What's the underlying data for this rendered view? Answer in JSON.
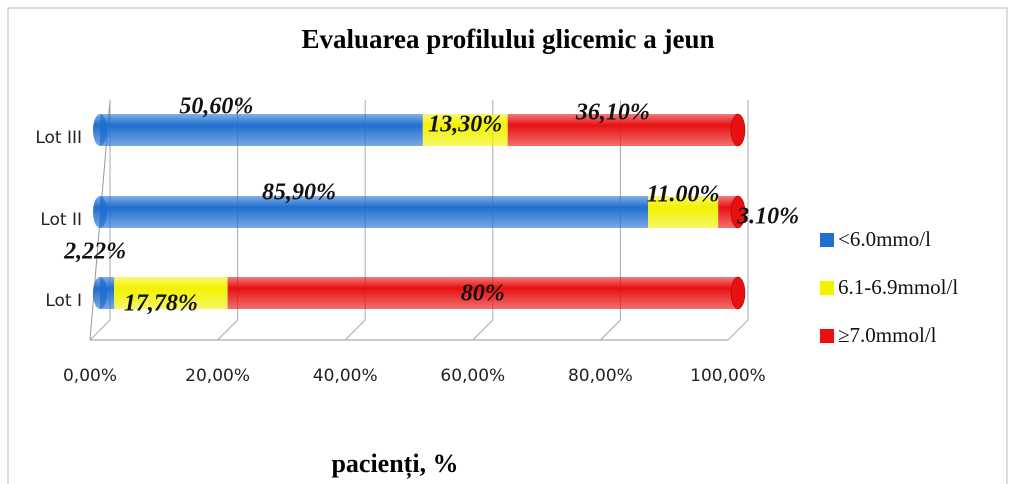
{
  "chart_data": {
    "type": "bar",
    "orientation": "horizontal",
    "stacked": true,
    "title": "Evaluarea profilului glicemic a jeun",
    "xlabel": "pacienți, %",
    "categories": [
      "Lot I",
      "Lot II",
      "Lot III"
    ],
    "series": [
      {
        "name": "<6.0mmo/l",
        "color": "#1f6fd0",
        "values": [
          2.22,
          85.9,
          50.6
        ],
        "value_labels": [
          "2,22%",
          "85,90%",
          "50,60%"
        ]
      },
      {
        "name": "6.1-6.9mmol/l",
        "color": "#f2f200",
        "values": [
          17.78,
          11.0,
          13.3
        ],
        "value_labels": [
          "17,78%",
          "11.00%",
          "13,30%"
        ]
      },
      {
        "name": "≥7.0mmol/l",
        "color": "#e81010",
        "values": [
          80,
          3.1,
          36.1
        ],
        "value_labels": [
          "80%",
          "3.10%",
          "36,10%"
        ]
      }
    ],
    "xlim": [
      0,
      100
    ],
    "xticks": [
      {
        "value": 0,
        "label": "0,00%"
      },
      {
        "value": 20,
        "label": "20,00%"
      },
      {
        "value": 40,
        "label": "40,00%"
      },
      {
        "value": 60,
        "label": "60,00%"
      },
      {
        "value": 80,
        "label": "80,00%"
      },
      {
        "value": 100,
        "label": "100,00%"
      }
    ],
    "grid": true,
    "legend": "right"
  }
}
